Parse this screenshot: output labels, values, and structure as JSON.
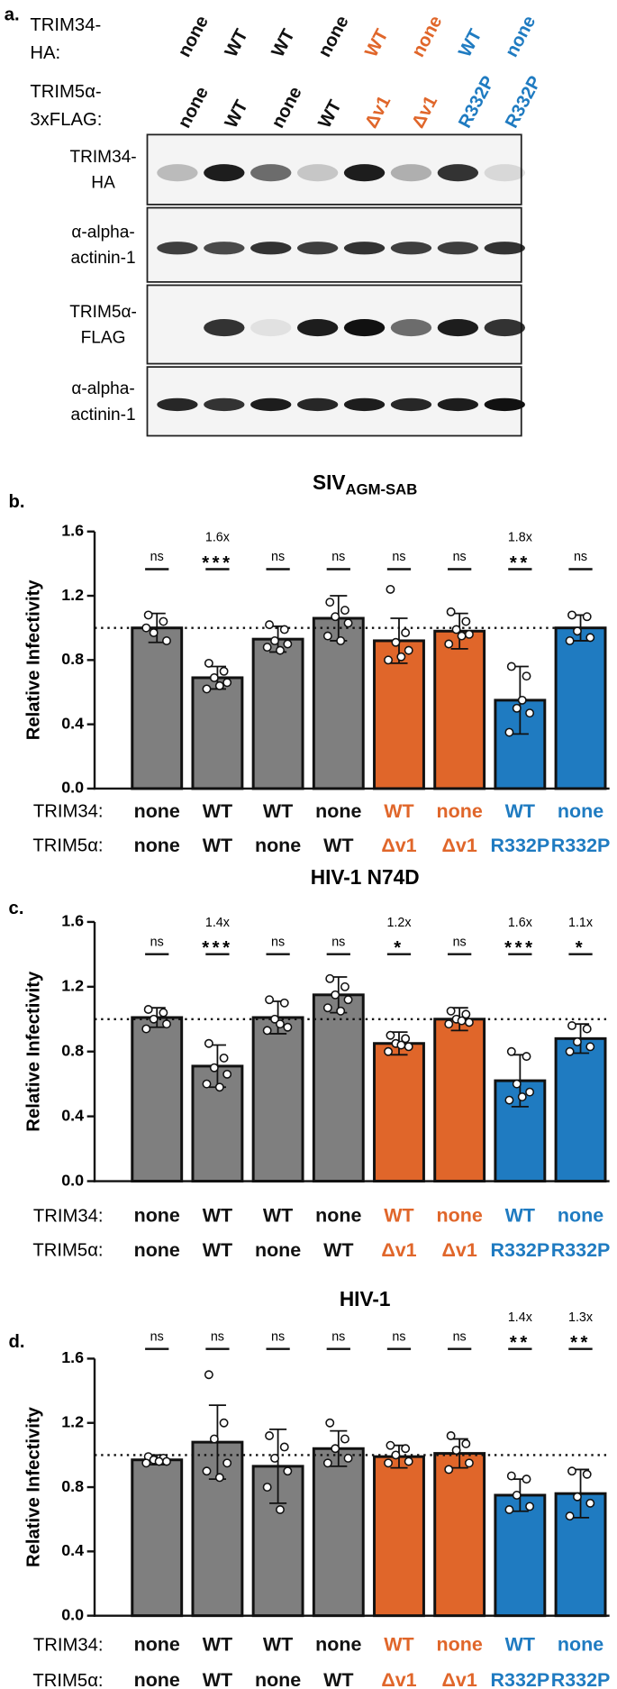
{
  "blot": {
    "panel_label": "a.",
    "lane_rows": [
      {
        "label": [
          "TRIM34-",
          "HA:"
        ],
        "lanes": [
          "none",
          "WT",
          "WT",
          "none",
          "WT",
          "none",
          "WT",
          "none"
        ],
        "colors": [
          "#111111",
          "#111111",
          "#111111",
          "#111111",
          "#e0662a",
          "#e0662a",
          "#1f7bc1",
          "#1f7bc1"
        ]
      },
      {
        "label": [
          "TRIM5α-",
          "3xFLAG:"
        ],
        "lanes": [
          "none",
          "WT",
          "none",
          "WT",
          "Δv1",
          "Δv1",
          "R332P",
          "R332P"
        ],
        "colors": [
          "#111111",
          "#111111",
          "#111111",
          "#111111",
          "#e0662a",
          "#e0662a",
          "#1f7bc1",
          "#1f7bc1"
        ]
      }
    ],
    "bands": [
      [
        "TRIM34-",
        "HA"
      ],
      [
        "α-alpha-",
        "actinin-1"
      ],
      [
        "TRIM5α-",
        "FLAG"
      ],
      [
        "α-alpha-",
        "actinin-1"
      ]
    ]
  },
  "chart_data": [
    {
      "type": "bar",
      "panel_label": "b.",
      "title": "SIV",
      "title_sub": "AGM-SAB",
      "ylabel": "Relative Infectivity",
      "row_labels": [
        "TRIM34:",
        "TRIM5α:"
      ],
      "categories": [
        "none",
        "WT",
        "WT",
        "none",
        "WT",
        "none",
        "WT",
        "none"
      ],
      "categories2": [
        "none",
        "WT",
        "none",
        "WT",
        "Δv1",
        "Δv1",
        "R332P",
        "R332P"
      ],
      "values": [
        1.0,
        0.69,
        0.93,
        1.06,
        0.92,
        0.98,
        0.55,
        1.0
      ],
      "errors": [
        0.09,
        0.07,
        0.08,
        0.14,
        0.14,
        0.11,
        0.21,
        0.08
      ],
      "points": [
        [
          1.08,
          1.04,
          0.97,
          0.92,
          1.0
        ],
        [
          0.78,
          0.73,
          0.69,
          0.66,
          0.62,
          0.64
        ],
        [
          1.02,
          0.99,
          0.92,
          0.9,
          0.88,
          0.86
        ],
        [
          1.16,
          1.11,
          1.07,
          1.03,
          0.95,
          0.92
        ],
        [
          1.24,
          0.97,
          0.91,
          0.86,
          0.8,
          0.82
        ],
        [
          1.1,
          1.04,
          0.99,
          0.96,
          0.9,
          0.95
        ],
        [
          0.76,
          0.7,
          0.5,
          0.47,
          0.35,
          0.55
        ],
        [
          1.08,
          1.07,
          0.98,
          0.94,
          0.92
        ]
      ],
      "significance": [
        "ns",
        "***",
        "ns",
        "ns",
        "ns",
        "ns",
        "**",
        "ns"
      ],
      "fold_change": [
        null,
        "1.6x",
        null,
        null,
        null,
        null,
        "1.8x",
        null
      ],
      "colors": [
        "#7f7f7f",
        "#7f7f7f",
        "#7f7f7f",
        "#7f7f7f",
        "#e0662a",
        "#e0662a",
        "#1f7bc1",
        "#1f7bc1"
      ],
      "label_colors": [
        "#111111",
        "#111111",
        "#111111",
        "#111111",
        "#e0662a",
        "#e0662a",
        "#1f7bc1",
        "#1f7bc1"
      ],
      "reference_line": 1,
      "ylim": [
        0,
        1.6
      ],
      "yticks": [
        {
          "value": 0,
          "label": "0.0"
        },
        0.4,
        0.8,
        1.2,
        1.6
      ]
    },
    {
      "type": "bar",
      "panel_label": "c.",
      "title": "HIV-1 N74D",
      "ylabel": "Relative Infectivity",
      "row_labels": [
        "TRIM34:",
        "TRIM5α:"
      ],
      "categories": [
        "none",
        "WT",
        "WT",
        "none",
        "WT",
        "none",
        "WT",
        "none"
      ],
      "categories2": [
        "none",
        "WT",
        "none",
        "WT",
        "Δv1",
        "Δv1",
        "R332P",
        "R332P"
      ],
      "values": [
        1.01,
        0.71,
        1.01,
        1.15,
        0.85,
        1.0,
        0.62,
        0.88
      ],
      "errors": [
        0.06,
        0.13,
        0.1,
        0.11,
        0.07,
        0.07,
        0.16,
        0.09
      ],
      "points": [
        [
          1.06,
          1.04,
          1.0,
          0.97,
          0.94
        ],
        [
          0.85,
          0.76,
          0.7,
          0.66,
          0.6,
          0.58
        ],
        [
          1.12,
          1.1,
          1.0,
          0.95,
          0.93,
          0.97
        ],
        [
          1.25,
          1.2,
          1.15,
          1.12,
          1.07,
          1.05
        ],
        [
          0.9,
          0.88,
          0.85,
          0.83,
          0.8,
          0.84
        ],
        [
          1.05,
          1.03,
          1.0,
          0.98,
          0.97,
          0.99
        ],
        [
          0.8,
          0.77,
          0.6,
          0.55,
          0.5,
          0.52
        ],
        [
          0.96,
          0.94,
          0.86,
          0.83,
          0.8
        ]
      ],
      "significance": [
        "ns",
        "***",
        "ns",
        "ns",
        "*",
        "ns",
        "***",
        "*"
      ],
      "fold_change": [
        null,
        "1.4x",
        null,
        null,
        "1.2x",
        null,
        "1.6x",
        "1.1x"
      ],
      "colors": [
        "#7f7f7f",
        "#7f7f7f",
        "#7f7f7f",
        "#7f7f7f",
        "#e0662a",
        "#e0662a",
        "#1f7bc1",
        "#1f7bc1"
      ],
      "label_colors": [
        "#111111",
        "#111111",
        "#111111",
        "#111111",
        "#e0662a",
        "#e0662a",
        "#1f7bc1",
        "#1f7bc1"
      ],
      "reference_line": 1,
      "ylim": [
        0,
        1.6
      ],
      "yticks": [
        {
          "value": 0,
          "label": "0.0"
        },
        0.4,
        0.8,
        1.2,
        1.6
      ]
    },
    {
      "type": "bar",
      "panel_label": "d.",
      "title": "HIV-1",
      "ylabel": "Relative Infectivity",
      "row_labels": [
        "TRIM34:",
        "TRIM5α:"
      ],
      "categories": [
        "none",
        "WT",
        "WT",
        "none",
        "WT",
        "none",
        "WT",
        "none"
      ],
      "categories2": [
        "none",
        "WT",
        "none",
        "WT",
        "Δv1",
        "Δv1",
        "R332P",
        "R332P"
      ],
      "values": [
        0.97,
        1.08,
        0.93,
        1.04,
        0.99,
        1.01,
        0.75,
        0.76
      ],
      "errors": [
        0.03,
        0.23,
        0.23,
        0.11,
        0.07,
        0.09,
        0.1,
        0.15
      ],
      "points": [
        [
          0.99,
          0.98,
          0.97,
          0.96,
          0.95,
          0.96
        ],
        [
          1.5,
          1.2,
          1.1,
          0.95,
          0.9,
          0.86
        ],
        [
          1.12,
          1.05,
          0.98,
          0.9,
          0.8,
          0.66
        ],
        [
          1.2,
          1.1,
          1.04,
          0.98,
          0.95
        ],
        [
          1.06,
          1.04,
          1.0,
          0.96,
          0.95
        ],
        [
          1.12,
          1.07,
          1.03,
          0.95,
          0.91
        ],
        [
          0.87,
          0.85,
          0.75,
          0.68,
          0.66
        ],
        [
          0.9,
          0.88,
          0.74,
          0.7,
          0.62
        ]
      ],
      "significance": [
        "ns",
        "ns",
        "ns",
        "ns",
        "ns",
        "ns",
        "**",
        "**"
      ],
      "fold_change": [
        null,
        null,
        null,
        null,
        null,
        null,
        "1.4x",
        "1.3x"
      ],
      "colors": [
        "#7f7f7f",
        "#7f7f7f",
        "#7f7f7f",
        "#7f7f7f",
        "#e0662a",
        "#e0662a",
        "#1f7bc1",
        "#1f7bc1"
      ],
      "label_colors": [
        "#111111",
        "#111111",
        "#111111",
        "#111111",
        "#e0662a",
        "#e0662a",
        "#1f7bc1",
        "#1f7bc1"
      ],
      "reference_line": 1,
      "ylim": [
        0,
        1.6
      ],
      "yticks": [
        {
          "value": 0,
          "label": "0.0"
        },
        0.4,
        0.8,
        1.2,
        1.6
      ]
    }
  ]
}
